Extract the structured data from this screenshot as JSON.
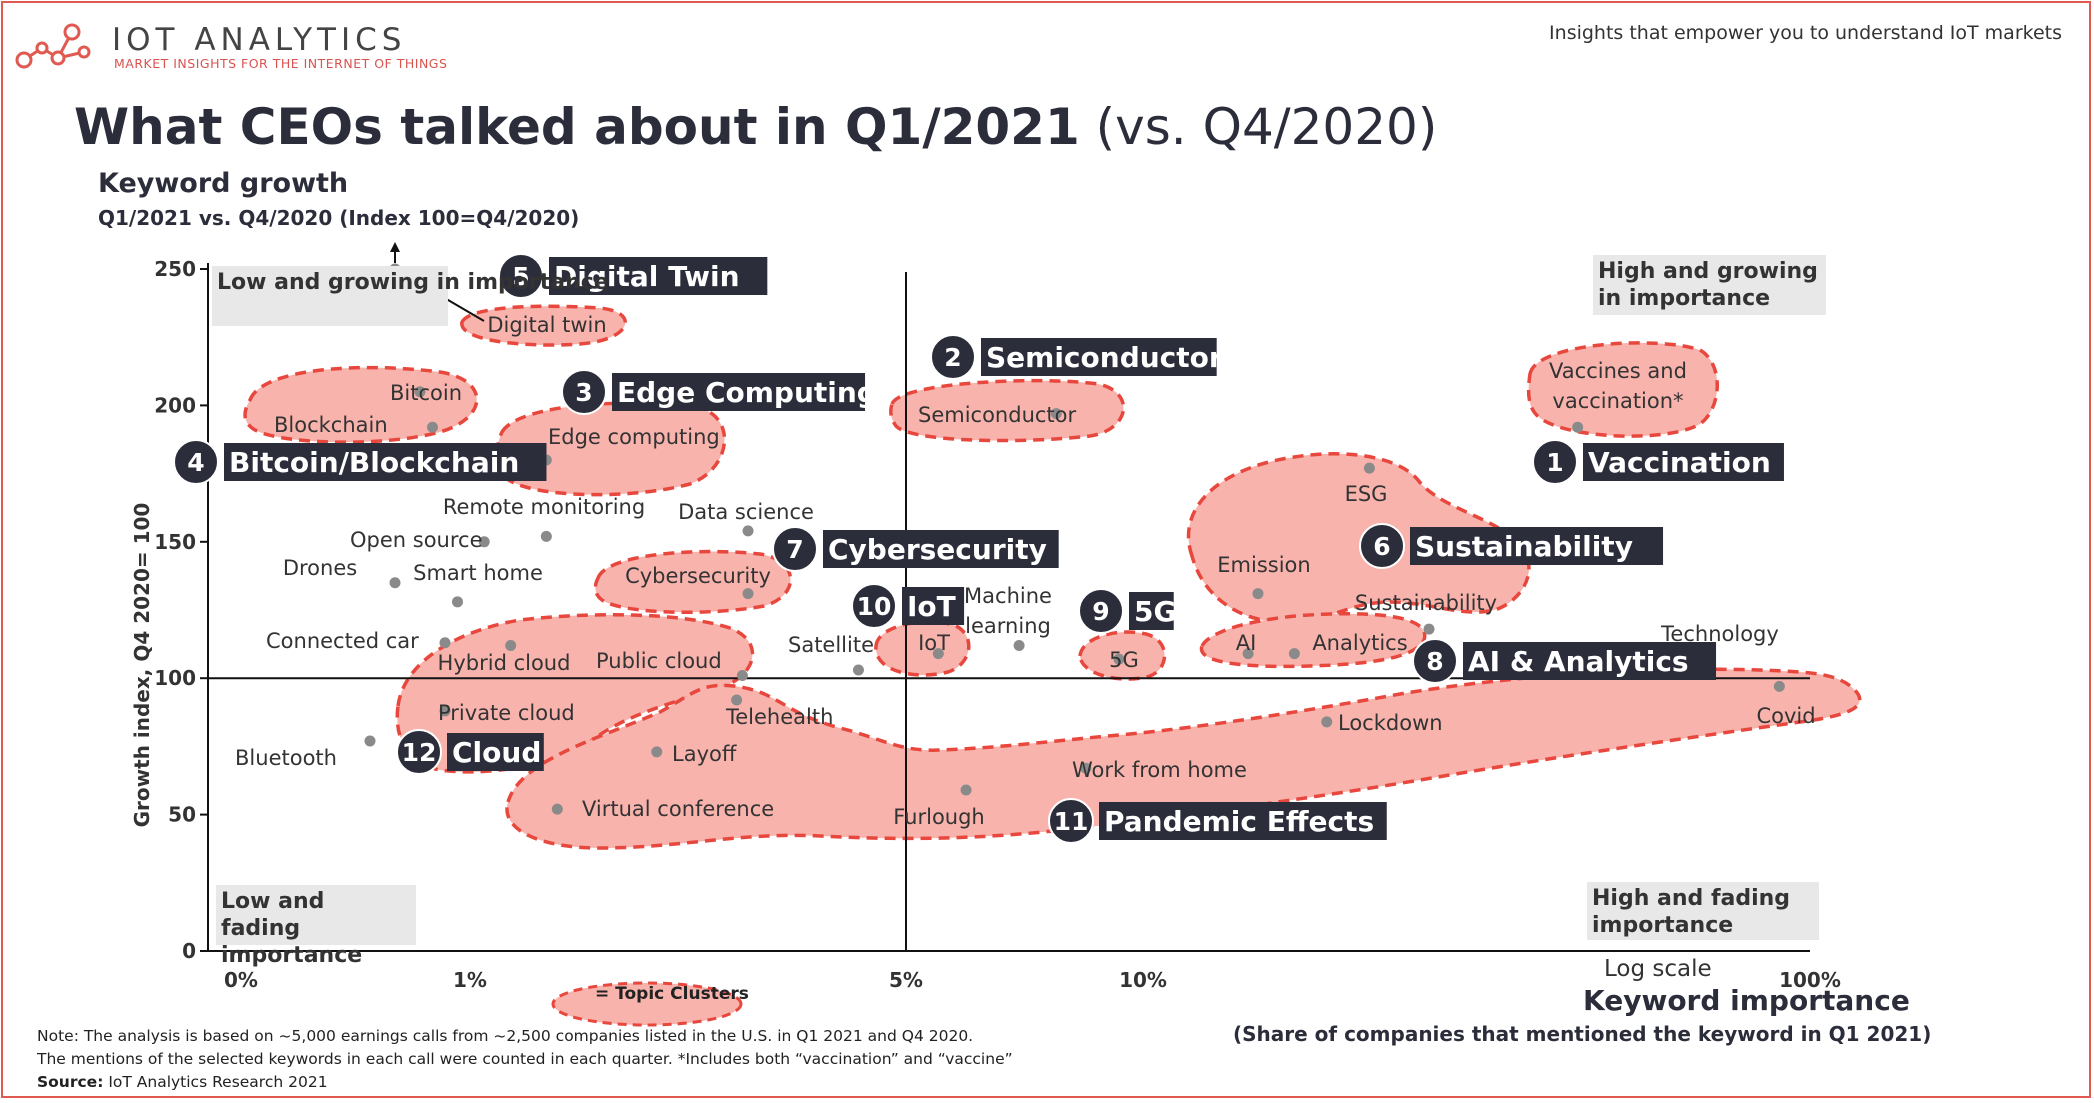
{
  "header": {
    "brand": "IOT ANALYTICS",
    "brand_sub": "MARKET INSIGHTS FOR THE INTERNET OF THINGS",
    "tagline": "Insights that empower you to understand IoT markets",
    "title_main": "What CEOs talked about in Q1/2021",
    "title_suffix": " (vs. Q4/2020)"
  },
  "legend": {
    "label": "= Topic Clusters"
  },
  "notes": {
    "line1": "Note: The analysis is based on ~5,000 earnings calls from ~2,500 companies listed in the U.S. in  Q1 2021 and Q4 2020.",
    "line2": "The mentions of the selected keywords in each call were counted in each quarter. *Includes both  “vaccination” and “vaccine”",
    "source_label": "Source:",
    "source_text": " IoT Analytics Research 2021"
  },
  "quadrants": {
    "top_left": "Low and growing in importance",
    "top_right": "High and growing in importance",
    "bottom_left": "Low and fading importance",
    "bottom_right": "High and fading importance"
  },
  "chart_data": {
    "type": "scatter",
    "ylabel_main": "Keyword growth",
    "ylabel_sub": "Q1/2021 vs. Q4/2020 (Index 100=Q4/2020)",
    "ylabel_axis": "Growth index, Q4 2020= 100",
    "xlabel": "Keyword importance",
    "xlabel_sub": "(Share of companies that mentioned the keyword in Q1 2021)",
    "x_scale": "log",
    "x_scale_label": "Log scale",
    "x_ticks": [
      "0%",
      "1%",
      "5%",
      "10%",
      "100%"
    ],
    "y_ticks": [
      "0",
      "50",
      "100",
      "150",
      "200",
      "250"
    ],
    "ylim": [
      0,
      250
    ],
    "reference_lines": {
      "x": "5%",
      "y": 100
    },
    "points": [
      {
        "label": "Digital twin",
        "x": 0.7,
        "y": 250
      },
      {
        "label": "Bitcoin",
        "x": 0.8,
        "y": 205
      },
      {
        "label": "Blockchain",
        "x": 0.85,
        "y": 192
      },
      {
        "label": "Edge computing",
        "x": 1.3,
        "y": 180
      },
      {
        "label": "Semiconductor",
        "x": 7.5,
        "y": 197
      },
      {
        "label": "Vaccines and vaccination*",
        "x": 45,
        "y": 192
      },
      {
        "label": "ESG",
        "x": 22,
        "y": 177
      },
      {
        "label": "Remote monitoring",
        "x": 1.3,
        "y": 152
      },
      {
        "label": "Open source",
        "x": 1.05,
        "y": 150
      },
      {
        "label": "Data science",
        "x": 2.6,
        "y": 154
      },
      {
        "label": "Drones",
        "x": 0.7,
        "y": 135
      },
      {
        "label": "Smart home",
        "x": 0.95,
        "y": 128
      },
      {
        "label": "Cybersecurity",
        "x": 2.6,
        "y": 131
      },
      {
        "label": "Emission",
        "x": 15,
        "y": 131
      },
      {
        "label": "Connected car",
        "x": 0.9,
        "y": 113
      },
      {
        "label": "Hybrid cloud",
        "x": 1.15,
        "y": 112
      },
      {
        "label": "Public cloud",
        "x": 2.55,
        "y": 101
      },
      {
        "label": "Satellite",
        "x": 3.8,
        "y": 103
      },
      {
        "label": "IoT",
        "x": 5,
        "y": 109
      },
      {
        "label": "Machine learning",
        "x": 6.6,
        "y": 112
      },
      {
        "label": "5G",
        "x": 9.3,
        "y": 107
      },
      {
        "label": "AI",
        "x": 14.5,
        "y": 109
      },
      {
        "label": "Analytics",
        "x": 17,
        "y": 109
      },
      {
        "label": "Sustainability",
        "x": 27,
        "y": 118
      },
      {
        "label": "Technology",
        "x": 57,
        "y": 109
      },
      {
        "label": "Covid",
        "x": 90,
        "y": 97
      },
      {
        "label": "Private cloud",
        "x": 0.9,
        "y": 88
      },
      {
        "label": "Telehealth",
        "x": 2.5,
        "y": 92
      },
      {
        "label": "Lockdown",
        "x": 19,
        "y": 84
      },
      {
        "label": "Bluetooth",
        "x": 0.6,
        "y": 77
      },
      {
        "label": "Layoff",
        "x": 1.9,
        "y": 73
      },
      {
        "label": "Work from home",
        "x": 8.3,
        "y": 67
      },
      {
        "label": "Furlough",
        "x": 5.5,
        "y": 59
      },
      {
        "label": "Virtual conference",
        "x": 1.35,
        "y": 52
      }
    ],
    "clusters": [
      {
        "rank": "1",
        "name": "Vaccination"
      },
      {
        "rank": "2",
        "name": "Semiconductor"
      },
      {
        "rank": "3",
        "name": "Edge Computing"
      },
      {
        "rank": "4",
        "name": "Bitcoin/Blockchain"
      },
      {
        "rank": "5",
        "name": "Digital Twin"
      },
      {
        "rank": "6",
        "name": "Sustainability"
      },
      {
        "rank": "7",
        "name": "Cybersecurity"
      },
      {
        "rank": "8",
        "name": "AI & Analytics"
      },
      {
        "rank": "9",
        "name": "5G"
      },
      {
        "rank": "10",
        "name": "IoT"
      },
      {
        "rank": "11",
        "name": "Pandemic Effects"
      },
      {
        "rank": "12",
        "name": "Cloud"
      }
    ]
  },
  "colors": {
    "accent": "#e05a52",
    "cluster_fill": "#f8b3ad",
    "cluster_stroke": "#e8473d",
    "badge": "#2b2d3a",
    "quadrant_box": "#e8e8e8",
    "point": "#8a8a8a"
  }
}
